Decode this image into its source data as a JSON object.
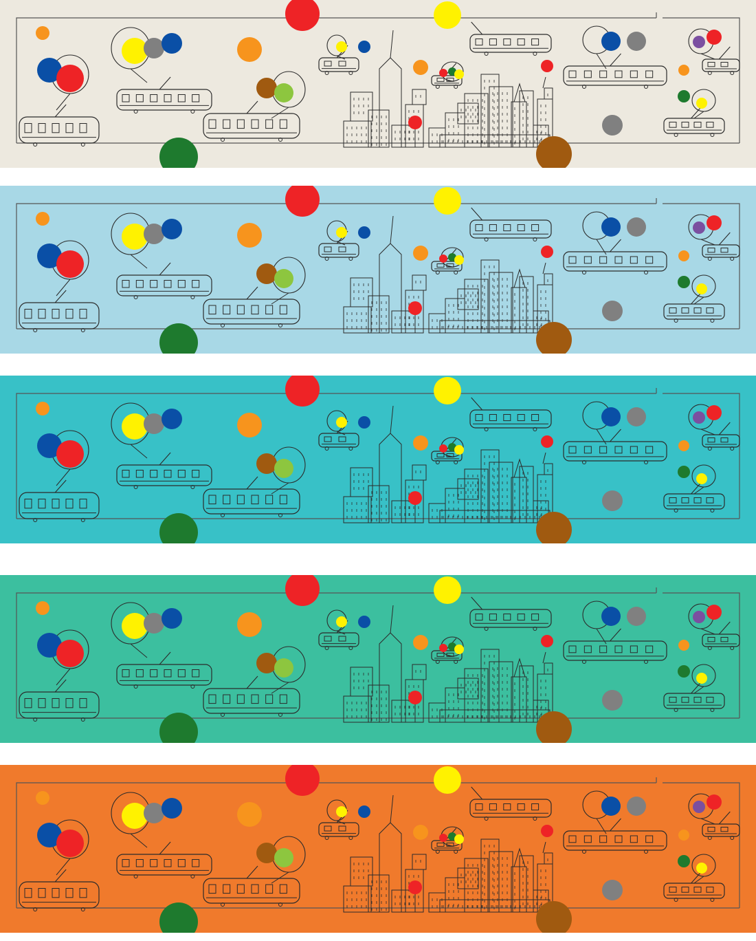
{
  "panels": [
    {
      "name": "panel-cream",
      "background": "#ede9df"
    },
    {
      "name": "panel-sky",
      "background": "#a8d8e6"
    },
    {
      "name": "panel-teal",
      "background": "#38c1c7"
    },
    {
      "name": "panel-jade",
      "background": "#3cbf9f"
    },
    {
      "name": "panel-orange",
      "background": "#f07a2c"
    }
  ],
  "palette": {
    "red": "#ee2326",
    "yellow": "#fff200",
    "blue": "#0a4fa6",
    "gray": "#808080",
    "orange": "#f7941d",
    "brown": "#a05a10",
    "lime": "#8dc63f",
    "green": "#1e7a2e",
    "purple": "#7b4fa0",
    "line": "#2b2b2b"
  },
  "motifs": [
    "trolley-car",
    "balloon",
    "city-skyline"
  ]
}
